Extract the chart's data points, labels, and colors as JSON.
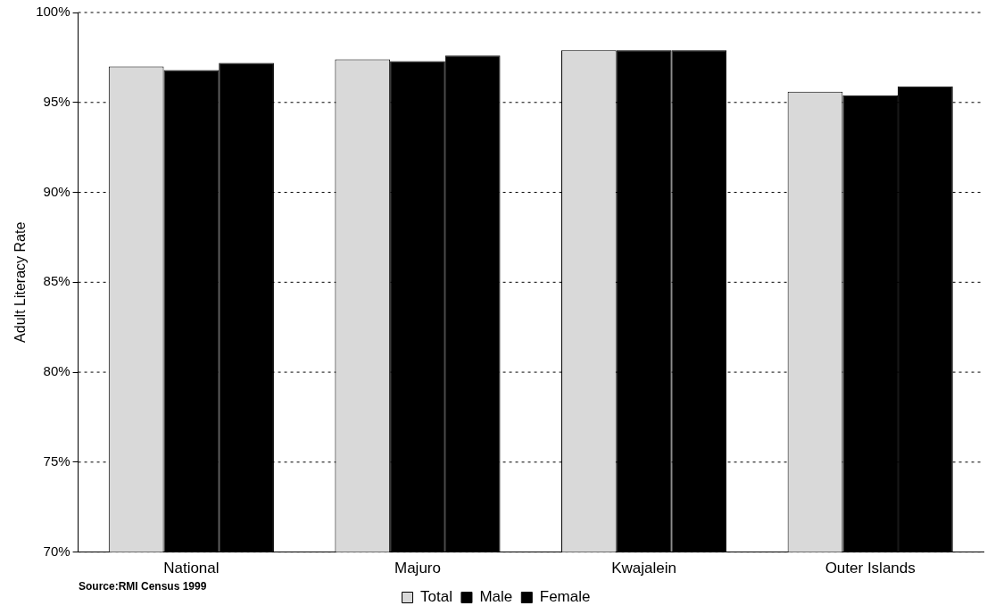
{
  "chart_data": {
    "type": "bar",
    "ylabel": "Adult Literacy Rate",
    "categories": [
      "National",
      "Majuro",
      "Kwajalein",
      "Outer Islands"
    ],
    "series": [
      {
        "name": "Total",
        "color": "#d9d9d9",
        "values": [
          97.0,
          97.4,
          97.9,
          95.6
        ]
      },
      {
        "name": "Male",
        "color": "#000000",
        "values": [
          96.8,
          97.3,
          97.9,
          95.4
        ]
      },
      {
        "name": "Female",
        "color": "#000000",
        "values": [
          97.2,
          97.6,
          97.9,
          95.9
        ]
      }
    ],
    "ylim": [
      70,
      100
    ],
    "yticks": [
      {
        "value": 70,
        "label": "70%"
      },
      {
        "value": 75,
        "label": "75%"
      },
      {
        "value": 80,
        "label": "80%"
      },
      {
        "value": 85,
        "label": "85%"
      },
      {
        "value": 90,
        "label": "90%"
      },
      {
        "value": 95,
        "label": "95%"
      },
      {
        "value": 100,
        "label": "100%"
      }
    ],
    "grid": "y",
    "legend": "bottom",
    "annotations": [
      "Source:RMI Census 1999"
    ]
  }
}
